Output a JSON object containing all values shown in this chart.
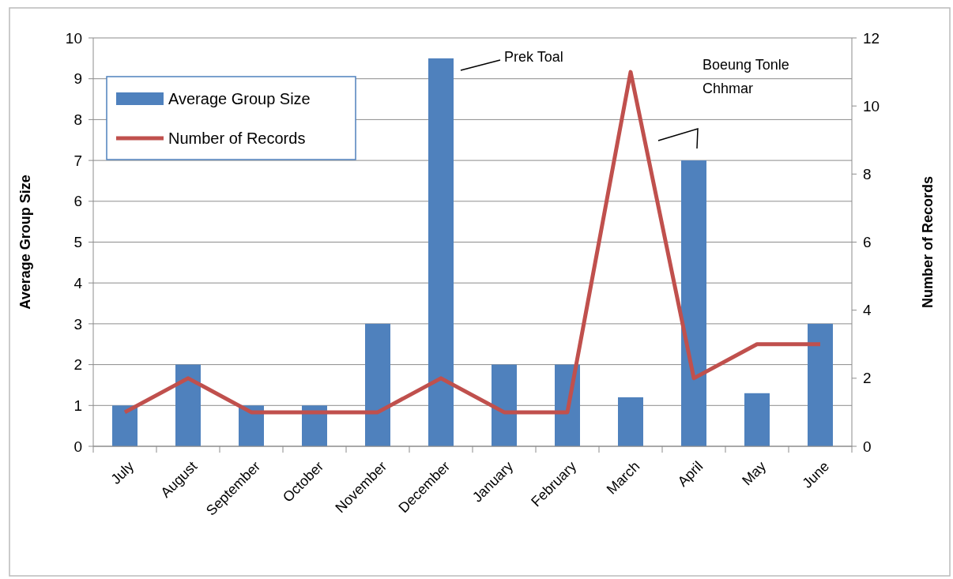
{
  "chart_data": {
    "type": "bar",
    "categories": [
      "July",
      "August",
      "September",
      "October",
      "November",
      "December",
      "January",
      "February",
      "March",
      "April",
      "May",
      "June"
    ],
    "series": [
      {
        "name": "Average Group Size",
        "color": "#4f81bd",
        "values": [
          1,
          2,
          1,
          1,
          3,
          9.5,
          2,
          2,
          1.2,
          7,
          1.3,
          3
        ]
      },
      {
        "name": "Number of Records",
        "type": "line",
        "axis": "y2",
        "color": "#c0504d",
        "values": [
          1,
          2,
          1,
          1,
          1,
          2,
          1,
          1,
          11,
          2,
          3,
          3
        ]
      }
    ],
    "ylabel": "Average Group Size",
    "y2label": "Number of Records",
    "ylim": [
      0,
      10
    ],
    "yticks": [
      0,
      1,
      2,
      3,
      4,
      5,
      6,
      7,
      8,
      9,
      10
    ],
    "y2lim": [
      0,
      12
    ],
    "y2ticks": [
      0,
      2,
      4,
      6,
      8,
      10,
      12
    ],
    "grid": "y",
    "legend": "top left",
    "marker": "none",
    "line_style": "solid",
    "annotations": [
      "Prek Toal",
      "Boeung Tonle Chhmar"
    ]
  }
}
